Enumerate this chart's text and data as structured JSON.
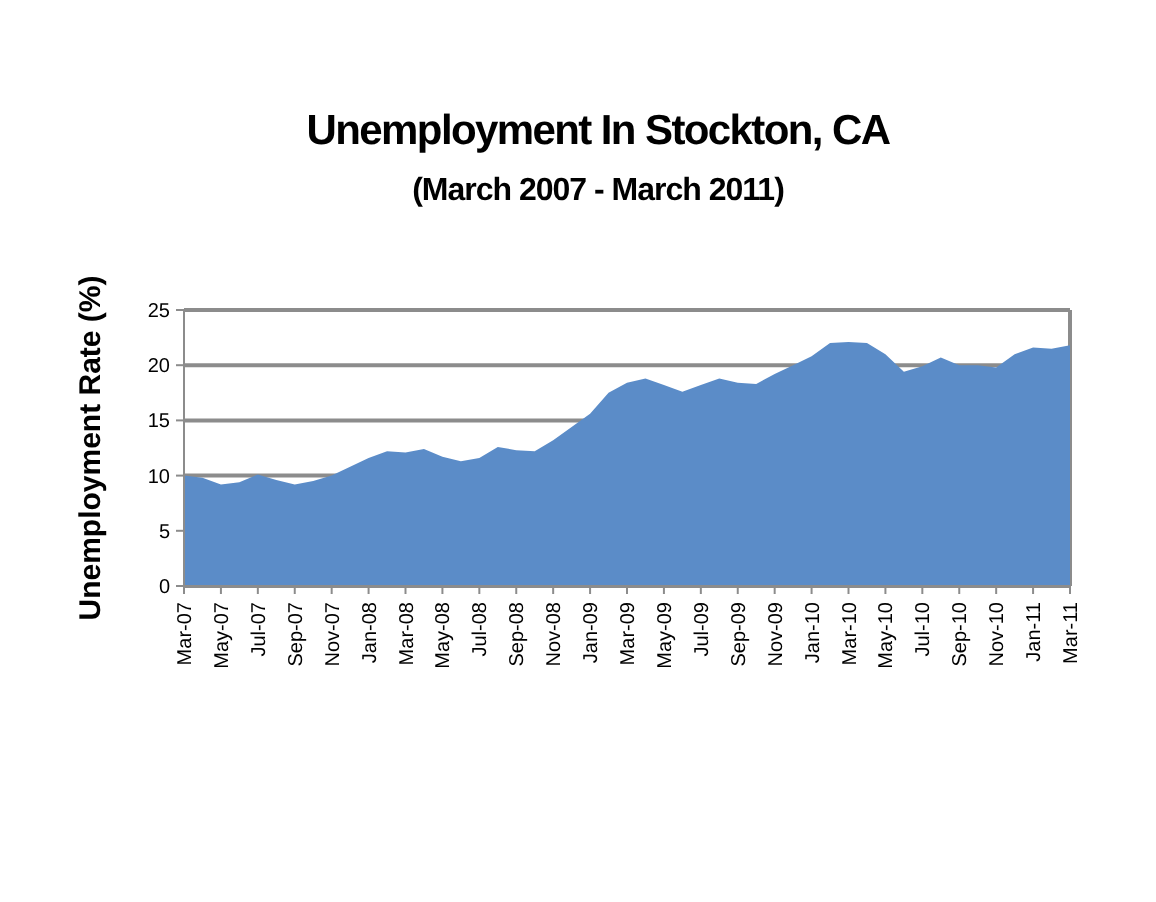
{
  "chart_data": {
    "type": "area",
    "title": "Unemployment In Stockton, CA",
    "subtitle": "(March 2007 - March 2011)",
    "ylabel": "Unemployment Rate (%)",
    "categories": [
      "Mar-07",
      null,
      "May-07",
      null,
      "Jul-07",
      null,
      "Sep-07",
      null,
      "Nov-07",
      null,
      "Jan-08",
      null,
      "Mar-08",
      null,
      "May-08",
      null,
      "Jul-08",
      null,
      "Sep-08",
      null,
      "Nov-08",
      null,
      "Jan-09",
      null,
      "Mar-09",
      null,
      "May-09",
      null,
      "Jul-09",
      null,
      "Sep-09",
      null,
      "Nov-09",
      null,
      "Jan-10",
      null,
      "Mar-10",
      null,
      "May-10",
      null,
      "Jul-10",
      null,
      "Sep-10",
      null,
      "Nov-10",
      null,
      "Jan-11",
      null,
      "Mar-11"
    ],
    "series": [
      {
        "color": "#5b8cc8",
        "values": [
          10,
          9.8,
          9.2,
          9.4,
          10.1,
          9.6,
          9.2,
          9.5,
          10,
          10.8,
          11.6,
          12.2,
          12.1,
          12.4,
          11.7,
          11.3,
          11.6,
          12.6,
          12.3,
          12.2,
          13.2,
          14.4,
          15.6,
          17.5,
          18.4,
          18.8,
          18.2,
          17.6,
          18.2,
          18.8,
          18.4,
          18.3,
          19.2,
          20,
          20.8,
          22,
          22.1,
          22,
          21,
          19.4,
          19.9,
          20.7,
          20,
          20,
          19.8,
          21,
          21.6,
          21.5,
          21.8
        ]
      }
    ],
    "ylim": [
      0,
      25
    ],
    "yticks": [
      0,
      5,
      10,
      15,
      20,
      25
    ],
    "grid": "y"
  }
}
